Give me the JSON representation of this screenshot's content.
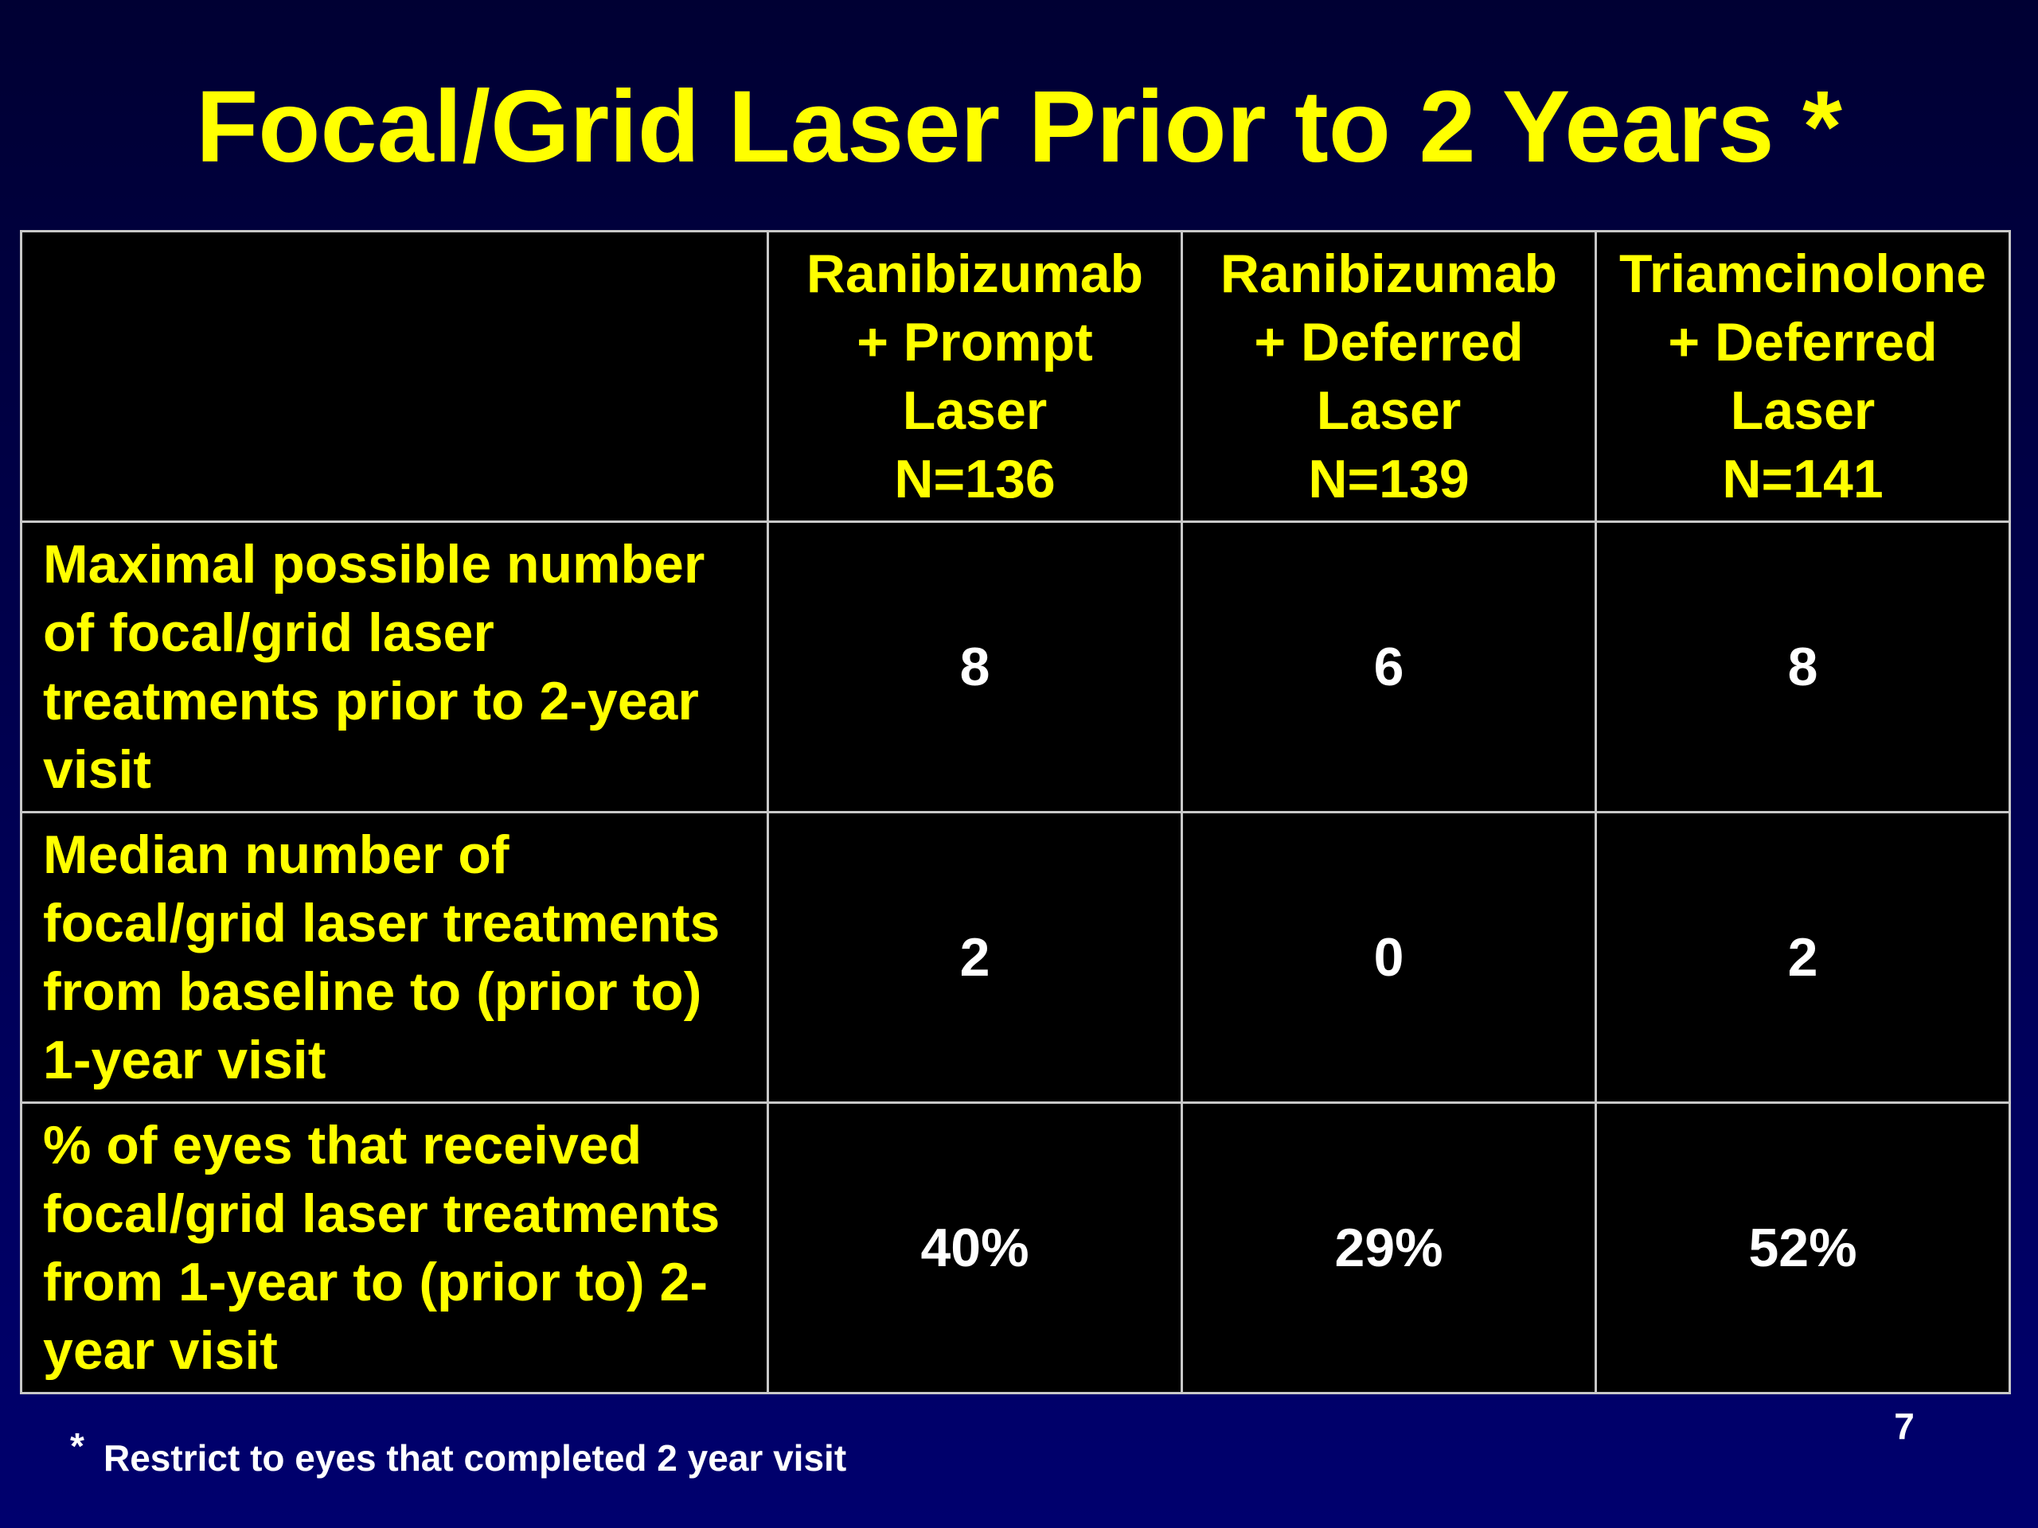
{
  "title": "Focal/Grid Laser Prior to 2 Years *",
  "table": {
    "header": [
      [
        "Ranibizumab",
        "+ Prompt",
        "Laser",
        "N=136"
      ],
      [
        "Ranibizumab",
        "+ Deferred",
        "Laser",
        "N=139"
      ],
      [
        "Triamcinolone",
        "+ Deferred",
        "Laser",
        "N=141"
      ]
    ],
    "rows": [
      {
        "label": "Maximal possible number of focal/grid laser treatments prior to 2-year visit",
        "cells": [
          "8",
          "6",
          "8"
        ]
      },
      {
        "label": "Median number of focal/grid laser treatments from baseline to (prior to) 1-year visit",
        "cells": [
          "2",
          "0",
          "2"
        ]
      },
      {
        "label": "% of eyes that received focal/grid laser treatments from 1-year to (prior to) 2-year visit",
        "cells": [
          "40%",
          "29%",
          "52%"
        ]
      }
    ]
  },
  "footnote": {
    "marker": "*",
    "text": "Restrict to eyes that completed 2 year visit"
  },
  "page_number": "7"
}
